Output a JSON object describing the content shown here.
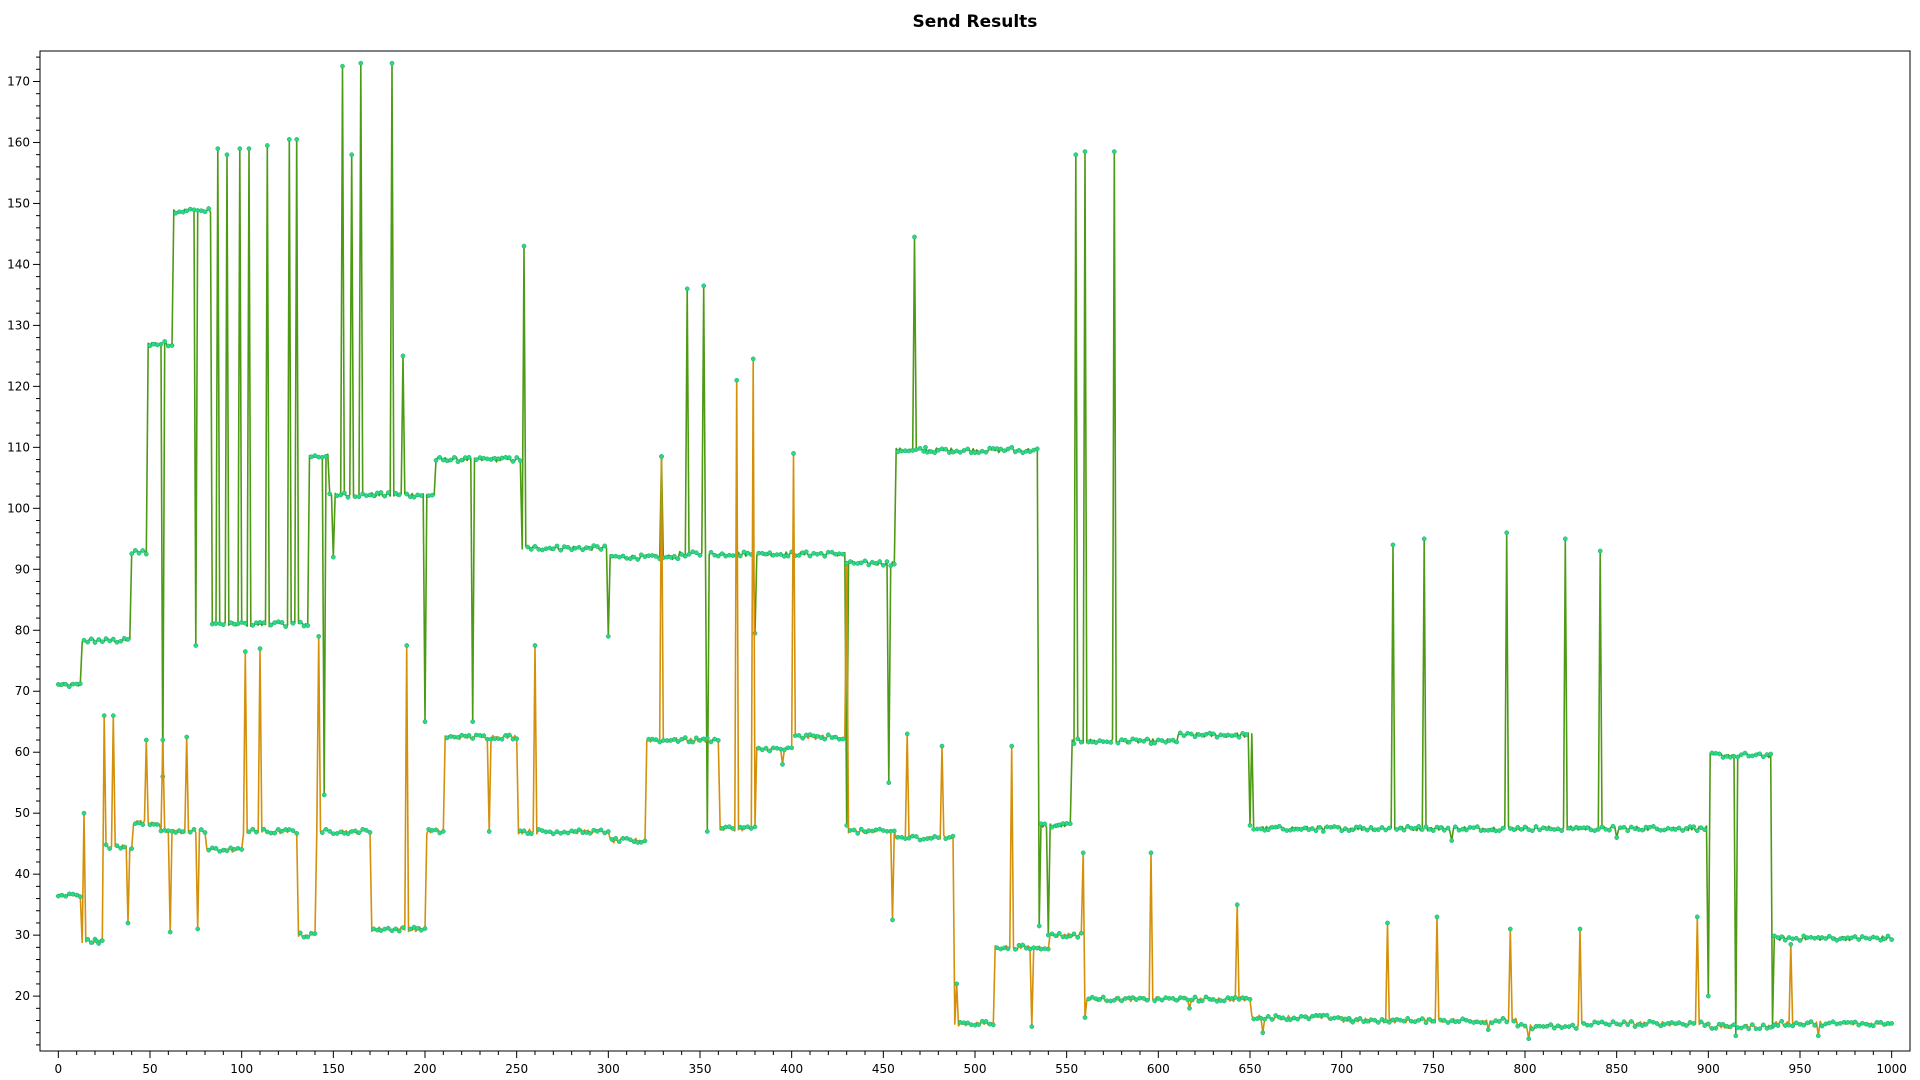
{
  "chart_data": {
    "type": "line",
    "title": "Send Results",
    "xlabel": "",
    "ylabel": "",
    "xlim": [
      -10,
      1010
    ],
    "ylim": [
      11,
      175
    ],
    "x_ticks": [
      0,
      50,
      100,
      150,
      200,
      250,
      300,
      350,
      400,
      450,
      500,
      550,
      600,
      650,
      700,
      750,
      800,
      850,
      900,
      950,
      1000
    ],
    "y_ticks": [
      20,
      30,
      40,
      50,
      60,
      70,
      80,
      90,
      100,
      110,
      120,
      130,
      140,
      150,
      160,
      170
    ],
    "minor_y_step": 2,
    "minor_x_step": 10,
    "grid": false,
    "legend": "none",
    "marker_color": "#2bd985",
    "marker_stroke": "#1aa866",
    "series": [
      {
        "color": "#4d9a14",
        "baseline_segments": [
          [
            0,
            12,
            71
          ],
          [
            13,
            38,
            78.3
          ],
          [
            40,
            48,
            92.8
          ],
          [
            49,
            62,
            127
          ],
          [
            63,
            83,
            148.8
          ],
          [
            84,
            136,
            81
          ],
          [
            137,
            147,
            108.5
          ],
          [
            148,
            205,
            102.2
          ],
          [
            206,
            252,
            108
          ],
          [
            253,
            300,
            93.5
          ],
          [
            301,
            338,
            92
          ],
          [
            339,
            430,
            92.5
          ],
          [
            431,
            456,
            91
          ],
          [
            457,
            535,
            109.5
          ],
          [
            536,
            552,
            48
          ],
          [
            553,
            610,
            61.8
          ],
          [
            611,
            651,
            62.8
          ],
          [
            652,
            725,
            47.5
          ],
          [
            726,
            899,
            47.5
          ],
          [
            900,
            935,
            59.5
          ],
          [
            936,
            1000,
            29.5
          ]
        ],
        "spikes": [
          [
            87,
            159
          ],
          [
            92,
            158
          ],
          [
            99,
            159
          ],
          [
            104,
            159
          ],
          [
            114,
            159.5
          ],
          [
            126,
            160.5
          ],
          [
            130,
            160.5
          ],
          [
            155,
            172.5
          ],
          [
            160,
            158
          ],
          [
            165,
            173
          ],
          [
            182,
            173
          ],
          [
            188,
            125
          ],
          [
            236,
            108
          ],
          [
            254,
            143
          ],
          [
            329,
            108.5
          ],
          [
            343,
            136
          ],
          [
            352,
            136.5
          ],
          [
            467,
            144.5
          ],
          [
            473,
            110
          ],
          [
            520,
            110
          ],
          [
            555,
            158
          ],
          [
            560,
            158.5
          ],
          [
            576,
            158.5
          ],
          [
            728,
            94
          ],
          [
            745,
            95
          ],
          [
            790,
            96
          ],
          [
            822,
            95
          ],
          [
            841,
            93
          ]
        ],
        "dips": [
          [
            57,
            56
          ],
          [
            75,
            77.5
          ],
          [
            145,
            53
          ],
          [
            150,
            92
          ],
          [
            200,
            65
          ],
          [
            226,
            65
          ],
          [
            300,
            79
          ],
          [
            354,
            47
          ],
          [
            380,
            79.5
          ],
          [
            430,
            48
          ],
          [
            453,
            55
          ],
          [
            535,
            31.5
          ],
          [
            540,
            30
          ],
          [
            545,
            48
          ],
          [
            650,
            48
          ],
          [
            690,
            47
          ],
          [
            760,
            45.5
          ],
          [
            850,
            46
          ],
          [
            900,
            20
          ],
          [
            915,
            13.5
          ],
          [
            935,
            15
          ]
        ]
      },
      {
        "color": "#d4900a",
        "baseline_segments": [
          [
            0,
            12,
            36.5
          ],
          [
            13,
            25,
            29
          ],
          [
            26,
            40,
            44.5
          ],
          [
            41,
            55,
            48.5
          ],
          [
            56,
            80,
            47
          ],
          [
            81,
            100,
            44
          ],
          [
            101,
            130,
            47
          ],
          [
            131,
            140,
            30
          ],
          [
            141,
            170,
            47
          ],
          [
            171,
            200,
            31
          ],
          [
            201,
            210,
            47
          ],
          [
            211,
            250,
            62.5
          ],
          [
            251,
            300,
            47
          ],
          [
            301,
            320,
            45.5
          ],
          [
            321,
            360,
            62
          ],
          [
            361,
            380,
            47.5
          ],
          [
            381,
            400,
            60.5
          ],
          [
            401,
            430,
            62.5
          ],
          [
            431,
            456,
            47
          ],
          [
            457,
            488,
            46
          ],
          [
            489,
            510,
            15.5
          ],
          [
            511,
            540,
            28
          ],
          [
            541,
            560,
            30
          ],
          [
            561,
            650,
            19.5
          ],
          [
            651,
            700,
            16.5
          ],
          [
            701,
            795,
            16
          ],
          [
            796,
            830,
            15
          ],
          [
            831,
            900,
            15.5
          ],
          [
            901,
            935,
            15
          ],
          [
            936,
            1000,
            15.5
          ]
        ],
        "spikes": [
          [
            14,
            50
          ],
          [
            25,
            66
          ],
          [
            30,
            66
          ],
          [
            48,
            62
          ],
          [
            57,
            62
          ],
          [
            70,
            62.5
          ],
          [
            102,
            76.5
          ],
          [
            110,
            77
          ],
          [
            142,
            79
          ],
          [
            190,
            77.5
          ],
          [
            260,
            77.5
          ],
          [
            329,
            108.5
          ],
          [
            370,
            121
          ],
          [
            379,
            124.5
          ],
          [
            401,
            109
          ],
          [
            430,
            91
          ],
          [
            463,
            63
          ],
          [
            482,
            61
          ],
          [
            520,
            61
          ],
          [
            559,
            43.5
          ],
          [
            596,
            43.5
          ],
          [
            643,
            35
          ],
          [
            725,
            32
          ],
          [
            752,
            33
          ],
          [
            792,
            31
          ],
          [
            830,
            31
          ],
          [
            894,
            33
          ],
          [
            945,
            28.5
          ]
        ],
        "dips": [
          [
            21,
            29
          ],
          [
            38,
            32
          ],
          [
            61,
            30.5
          ],
          [
            76,
            31
          ],
          [
            160,
            47
          ],
          [
            235,
            47
          ],
          [
            282,
            47
          ],
          [
            300,
            47
          ],
          [
            362,
            47.5
          ],
          [
            395,
            58
          ],
          [
            455,
            32.5
          ],
          [
            490,
            22
          ],
          [
            531,
            15
          ],
          [
            560,
            16.5
          ],
          [
            617,
            18
          ],
          [
            657,
            14
          ],
          [
            705,
            16
          ],
          [
            780,
            14.5
          ],
          [
            802,
            13
          ],
          [
            860,
            15
          ],
          [
            960,
            13.5
          ]
        ]
      }
    ]
  }
}
